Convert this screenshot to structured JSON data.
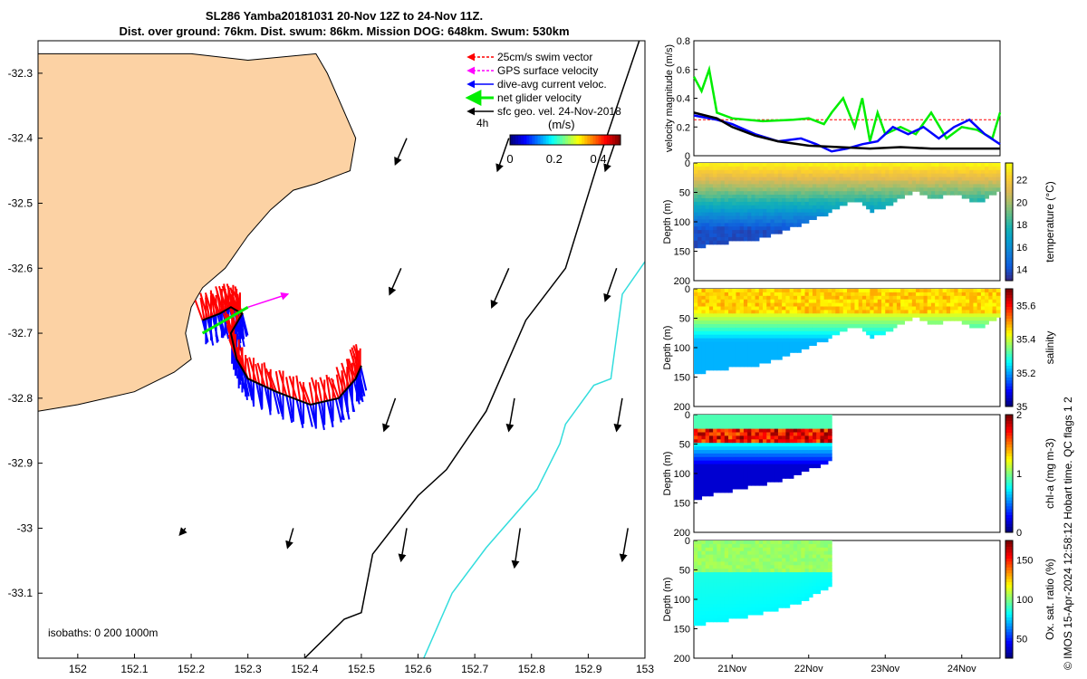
{
  "title": {
    "line1": "SL286 Yamba20181031 20-Nov 12Z to 24-Nov 11Z.",
    "line2": "Dist. over ground: 76km. Dist. swum: 86km. Mission DOG: 648km. Swum: 530km"
  },
  "side_note": "© IMOS 15-Apr-2024 12:58:12 Hobart time. QC flags 1  2",
  "colors": {
    "land": "#fcd2a4",
    "swim_vector": "#ff0000",
    "gps_velocity": "#ff00ff",
    "dive_avg": "#0000ff",
    "net_glider": "#00ee00",
    "geo_vel": "#000000",
    "isobath_200": "#000000",
    "isobath_1000": "#33dddd"
  },
  "chart_data": [
    {
      "type": "map",
      "panel": "glider track map",
      "xlim": [
        151.93,
        153.0
      ],
      "ylim": [
        -33.2,
        -32.25
      ],
      "x_ticks": [
        152,
        152.1,
        152.2,
        152.3,
        152.4,
        152.5,
        152.6,
        152.7,
        152.8,
        152.9,
        153
      ],
      "x_tick_labels": [
        "152",
        "152.1",
        "152.2",
        "152.3",
        "152.4",
        "152.5",
        "152.6",
        "152.7",
        "152.8",
        "152.9",
        "153"
      ],
      "y_ticks": [
        -32.3,
        -32.4,
        -32.5,
        -32.6,
        -32.7,
        -32.8,
        -32.9,
        -33,
        -33.1
      ],
      "y_tick_labels": [
        "-32.3",
        "-32.4",
        "-32.5",
        "-32.6",
        "-32.7",
        "-32.8",
        "-32.9",
        "-33",
        "-33.1"
      ],
      "legend": {
        "placement": "top-right",
        "entries": [
          "25cm/s swim vector",
          "GPS surface velocity",
          "dive-avg current veloc.",
          "net glider velocity",
          "sfc geo. vel. 24-Nov-2018"
        ]
      },
      "scale_label": "4h",
      "colorbar": {
        "label": "(m/s)",
        "ticks": [
          "0",
          "0.2",
          "0.4"
        ],
        "range": [
          0,
          0.5
        ]
      },
      "isobaths_label": "isobaths: 0   200  1000m",
      "coastline": [
        [
          151.93,
          -32.27
        ],
        [
          152.06,
          -32.27
        ],
        [
          152.2,
          -32.27
        ],
        [
          152.3,
          -32.28
        ],
        [
          152.42,
          -32.27
        ],
        [
          152.44,
          -32.3
        ],
        [
          152.46,
          -32.34
        ],
        [
          152.49,
          -32.4
        ],
        [
          152.48,
          -32.45
        ],
        [
          152.42,
          -32.47
        ],
        [
          152.38,
          -32.48
        ],
        [
          152.34,
          -32.51
        ],
        [
          152.3,
          -32.55
        ],
        [
          152.26,
          -32.6
        ],
        [
          152.22,
          -32.63
        ],
        [
          152.2,
          -32.66
        ],
        [
          152.19,
          -32.7
        ],
        [
          152.2,
          -32.74
        ],
        [
          152.17,
          -32.76
        ],
        [
          152.1,
          -32.79
        ],
        [
          152.0,
          -32.81
        ],
        [
          151.93,
          -32.82
        ]
      ],
      "isobath_200": [
        [
          152.99,
          -32.25
        ],
        [
          152.92,
          -32.43
        ],
        [
          152.86,
          -32.6
        ],
        [
          152.79,
          -32.68
        ],
        [
          152.72,
          -32.82
        ],
        [
          152.65,
          -32.91
        ],
        [
          152.6,
          -32.95
        ],
        [
          152.52,
          -33.04
        ],
        [
          152.5,
          -33.13
        ],
        [
          152.47,
          -33.14
        ],
        [
          152.4,
          -33.2
        ]
      ],
      "isobath_1000": [
        [
          153.0,
          -32.59
        ],
        [
          152.96,
          -32.64
        ],
        [
          152.94,
          -32.77
        ],
        [
          152.91,
          -32.78
        ],
        [
          152.86,
          -32.84
        ],
        [
          152.85,
          -32.87
        ],
        [
          152.81,
          -32.94
        ],
        [
          152.72,
          -33.03
        ],
        [
          152.66,
          -33.1
        ],
        [
          152.61,
          -33.2
        ]
      ],
      "track": [
        [
          152.22,
          -32.68
        ],
        [
          152.25,
          -32.67
        ],
        [
          152.27,
          -32.66
        ],
        [
          152.29,
          -32.67
        ],
        [
          152.27,
          -32.7
        ],
        [
          152.28,
          -32.74
        ],
        [
          152.3,
          -32.77
        ],
        [
          152.35,
          -32.79
        ],
        [
          152.41,
          -32.81
        ],
        [
          152.46,
          -32.8
        ],
        [
          152.49,
          -32.77
        ],
        [
          152.5,
          -32.75
        ]
      ],
      "geo_vectors": [
        [
          152.58,
          -32.4,
          -0.02,
          -0.04
        ],
        [
          152.76,
          -32.4,
          -0.02,
          -0.05
        ],
        [
          152.95,
          -32.4,
          -0.02,
          -0.05
        ],
        [
          152.57,
          -32.6,
          -0.02,
          -0.04
        ],
        [
          152.76,
          -32.6,
          -0.03,
          -0.06
        ],
        [
          152.95,
          -32.6,
          -0.02,
          -0.05
        ],
        [
          152.56,
          -32.8,
          -0.02,
          -0.05
        ],
        [
          152.77,
          -32.8,
          -0.01,
          -0.05
        ],
        [
          152.96,
          -32.8,
          -0.01,
          -0.05
        ],
        [
          152.19,
          -33.0,
          -0.01,
          -0.01
        ],
        [
          152.38,
          -33.0,
          -0.01,
          -0.03
        ],
        [
          152.58,
          -33.0,
          -0.01,
          -0.05
        ],
        [
          152.78,
          -33.0,
          -0.01,
          -0.06
        ],
        [
          152.97,
          -33.0,
          -0.01,
          -0.05
        ]
      ]
    },
    {
      "type": "line",
      "panel": "velocity magnitude",
      "ylabel": "velocity magnitude (m/s)",
      "ylim": [
        0,
        0.8
      ],
      "y_ticks": [
        "0",
        "0.2",
        "0.4",
        "0.6",
        "0.8"
      ],
      "xlim": [
        20.5,
        24.5
      ],
      "series": [
        {
          "color": "#ff0000",
          "x": [
            20.5,
            24.5
          ],
          "y": [
            0.25,
            0.25
          ]
        },
        {
          "color": "#00ee00",
          "x": [
            20.5,
            20.6,
            20.7,
            20.8,
            21.0,
            21.4,
            21.8,
            22.0,
            22.2,
            22.3,
            22.45,
            22.6,
            22.7,
            22.8,
            22.9,
            23.0,
            23.2,
            23.4,
            23.6,
            23.8,
            24.0,
            24.2,
            24.4,
            24.5
          ],
          "y": [
            0.55,
            0.45,
            0.6,
            0.3,
            0.26,
            0.24,
            0.25,
            0.26,
            0.22,
            0.3,
            0.4,
            0.2,
            0.4,
            0.1,
            0.3,
            0.15,
            0.2,
            0.15,
            0.3,
            0.12,
            0.2,
            0.18,
            0.12,
            0.3
          ]
        },
        {
          "color": "#0000ff",
          "x": [
            20.5,
            20.8,
            21.0,
            21.3,
            21.6,
            21.9,
            22.1,
            22.3,
            22.5,
            22.7,
            22.9,
            23.1,
            23.3,
            23.5,
            23.7,
            23.9,
            24.1,
            24.3,
            24.5
          ],
          "y": [
            0.28,
            0.25,
            0.22,
            0.15,
            0.1,
            0.12,
            0.08,
            0.03,
            0.05,
            0.08,
            0.1,
            0.2,
            0.15,
            0.2,
            0.12,
            0.2,
            0.25,
            0.15,
            0.08
          ]
        },
        {
          "color": "#000000",
          "x": [
            20.5,
            20.8,
            21.0,
            21.3,
            21.6,
            22.0,
            22.4,
            22.8,
            23.2,
            23.6,
            24.0,
            24.5
          ],
          "y": [
            0.3,
            0.26,
            0.2,
            0.14,
            0.1,
            0.07,
            0.06,
            0.05,
            0.06,
            0.05,
            0.05,
            0.05
          ]
        }
      ]
    },
    {
      "type": "heatmap",
      "panel": "temperature section",
      "ylabel": "Depth (m)",
      "colorbar_label": "temperature (°C)",
      "colorbar_ticks": [
        "14",
        "16",
        "18",
        "20",
        "22"
      ],
      "clim": [
        13,
        23.5
      ],
      "ylim": [
        200,
        0
      ],
      "y_ticks": [
        "0",
        "50",
        "100",
        "150",
        "200"
      ],
      "xlim": [
        20.5,
        24.5
      ],
      "max_depth": [
        [
          20.5,
          140
        ],
        [
          20.8,
          135
        ],
        [
          21.0,
          130
        ],
        [
          21.4,
          125
        ],
        [
          21.7,
          110
        ],
        [
          22.0,
          95
        ],
        [
          22.2,
          85
        ],
        [
          22.4,
          70
        ],
        [
          22.6,
          60
        ],
        [
          22.8,
          80
        ],
        [
          23.0,
          70
        ],
        [
          23.2,
          55
        ],
        [
          23.4,
          45
        ],
        [
          23.6,
          60
        ],
        [
          23.8,
          50
        ],
        [
          24.0,
          55
        ],
        [
          24.2,
          65
        ],
        [
          24.4,
          50
        ],
        [
          24.5,
          45
        ]
      ]
    },
    {
      "type": "heatmap",
      "panel": "salinity section",
      "ylabel": "Depth (m)",
      "colorbar_label": "salinity",
      "colorbar_ticks": [
        "35",
        "35.2",
        "35.4",
        "35.6"
      ],
      "clim": [
        35.0,
        35.7
      ],
      "ylim": [
        200,
        0
      ],
      "y_ticks": [
        "0",
        "50",
        "100",
        "150",
        "200"
      ],
      "xlim": [
        20.5,
        24.5
      ],
      "max_depth": [
        [
          20.5,
          140
        ],
        [
          20.8,
          135
        ],
        [
          21.0,
          130
        ],
        [
          21.4,
          125
        ],
        [
          21.7,
          110
        ],
        [
          22.0,
          95
        ],
        [
          22.2,
          85
        ],
        [
          22.4,
          70
        ],
        [
          22.6,
          60
        ],
        [
          22.8,
          80
        ],
        [
          23.0,
          70
        ],
        [
          23.2,
          55
        ],
        [
          23.4,
          45
        ],
        [
          23.6,
          60
        ],
        [
          23.8,
          50
        ],
        [
          24.0,
          55
        ],
        [
          24.2,
          65
        ],
        [
          24.4,
          50
        ],
        [
          24.5,
          45
        ]
      ]
    },
    {
      "type": "heatmap",
      "panel": "chlorophyll section",
      "ylabel": "Depth (m)",
      "colorbar_label": "chl-a (mg m-3)",
      "colorbar_ticks": [
        "0",
        "1",
        "2"
      ],
      "clim": [
        0,
        2
      ],
      "ylim": [
        200,
        0
      ],
      "y_ticks": [
        "0",
        "50",
        "100",
        "150",
        "200"
      ],
      "xlim": [
        20.5,
        24.5
      ],
      "max_depth": [
        [
          20.5,
          140
        ],
        [
          20.8,
          130
        ],
        [
          21.0,
          125
        ],
        [
          21.4,
          115
        ],
        [
          21.7,
          105
        ],
        [
          21.9,
          95
        ],
        [
          22.1,
          85
        ],
        [
          22.3,
          75
        ]
      ]
    },
    {
      "type": "heatmap",
      "panel": "oxygen section",
      "ylabel": "Depth (m)",
      "colorbar_label": "Ox. sat. ratio (%)",
      "colorbar_ticks": [
        "50",
        "100",
        "150"
      ],
      "clim": [
        25,
        175
      ],
      "ylim": [
        200,
        0
      ],
      "y_ticks": [
        "0",
        "50",
        "100",
        "150",
        "200"
      ],
      "xlim": [
        20.5,
        24.5
      ],
      "x_ticks": [
        21,
        22,
        23,
        24
      ],
      "x_tick_labels": [
        "21Nov",
        "22Nov",
        "23Nov",
        "24Nov"
      ],
      "max_depth": [
        [
          20.5,
          140
        ],
        [
          20.8,
          135
        ],
        [
          21.0,
          130
        ],
        [
          21.4,
          120
        ],
        [
          21.7,
          110
        ],
        [
          21.9,
          100
        ],
        [
          22.1,
          85
        ],
        [
          22.3,
          75
        ]
      ]
    }
  ]
}
